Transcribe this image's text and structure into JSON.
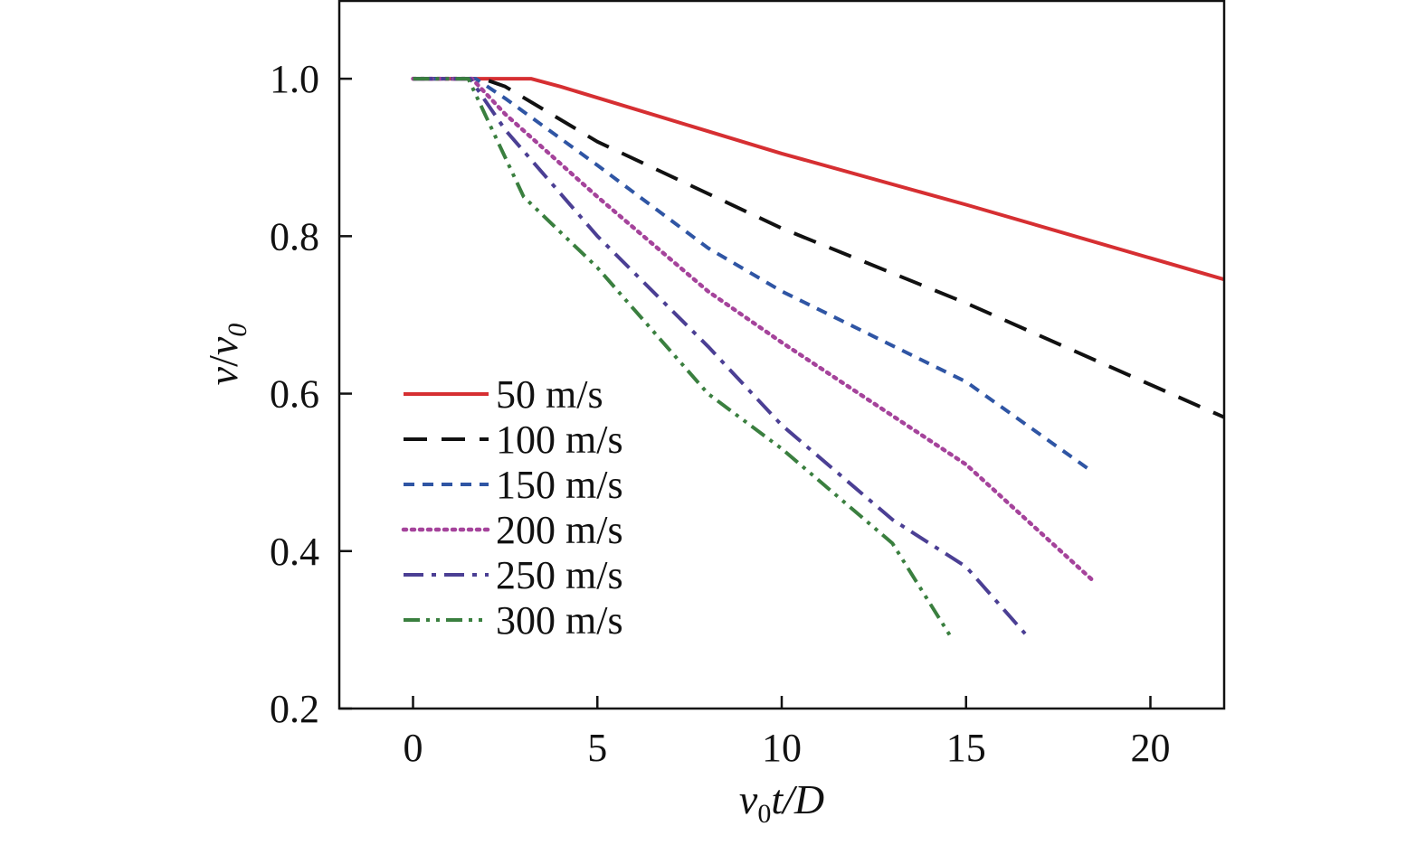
{
  "chart_data": {
    "type": "line",
    "xlim": [
      -2,
      22
    ],
    "ylim": [
      0.2,
      1.1
    ],
    "x_ticks": [
      0,
      5,
      10,
      15,
      20
    ],
    "y_ticks": [
      0.2,
      0.4,
      0.6,
      0.8,
      1.0
    ],
    "x_tick_labels": [
      "0",
      "5",
      "10",
      "15",
      "20"
    ],
    "y_tick_labels": [
      "0.2",
      "0.4",
      "0.6",
      "0.8",
      "1.0"
    ],
    "xlabel": {
      "v": "v",
      "sub": "0",
      "rest": "t/D"
    },
    "ylabel": {
      "v": "v",
      "slash": "/",
      "v2": "v",
      "sub": "0"
    },
    "grid": false,
    "legend_position": "lower-left",
    "series": [
      {
        "name": "50 m/s",
        "color": "#d62f32",
        "dash": "solid",
        "x": [
          0,
          3.2,
          4.0,
          10.0,
          15.0,
          22.0
        ],
        "y": [
          1.0,
          1.0,
          0.99,
          0.905,
          0.84,
          0.745
        ]
      },
      {
        "name": "100 m/s",
        "color": "#111111",
        "dash": "dash",
        "x": [
          0,
          1.9,
          2.5,
          5.0,
          10.0,
          15.0,
          22.0
        ],
        "y": [
          1.0,
          1.0,
          0.99,
          0.92,
          0.81,
          0.715,
          0.57
        ]
      },
      {
        "name": "150 m/s",
        "color": "#2f55a4",
        "dash": "shortdash",
        "x": [
          0,
          1.7,
          2.5,
          5.0,
          8.0,
          10.0,
          15.0,
          18.3
        ],
        "y": [
          1.0,
          1.0,
          0.975,
          0.89,
          0.785,
          0.73,
          0.615,
          0.505
        ]
      },
      {
        "name": "200 m/s",
        "color": "#a5439b",
        "dash": "dot",
        "x": [
          0,
          1.6,
          2.5,
          5.0,
          8.0,
          10.0,
          15.0,
          18.5
        ],
        "y": [
          1.0,
          1.0,
          0.955,
          0.85,
          0.73,
          0.665,
          0.51,
          0.36
        ]
      },
      {
        "name": "250 m/s",
        "color": "#4b3f94",
        "dash": "dashdot",
        "x": [
          0,
          1.55,
          2.5,
          5.0,
          8.0,
          10.0,
          13.0,
          15.0,
          16.6
        ],
        "y": [
          1.0,
          1.0,
          0.935,
          0.8,
          0.66,
          0.56,
          0.44,
          0.38,
          0.295
        ]
      },
      {
        "name": "300 m/s",
        "color": "#3a7f3f",
        "dash": "dashdotdot",
        "x": [
          0,
          1.5,
          2.0,
          3.0,
          5.0,
          8.0,
          10.0,
          13.0,
          14.6
        ],
        "y": [
          1.0,
          1.0,
          0.95,
          0.85,
          0.76,
          0.6,
          0.53,
          0.41,
          0.29
        ]
      }
    ]
  }
}
